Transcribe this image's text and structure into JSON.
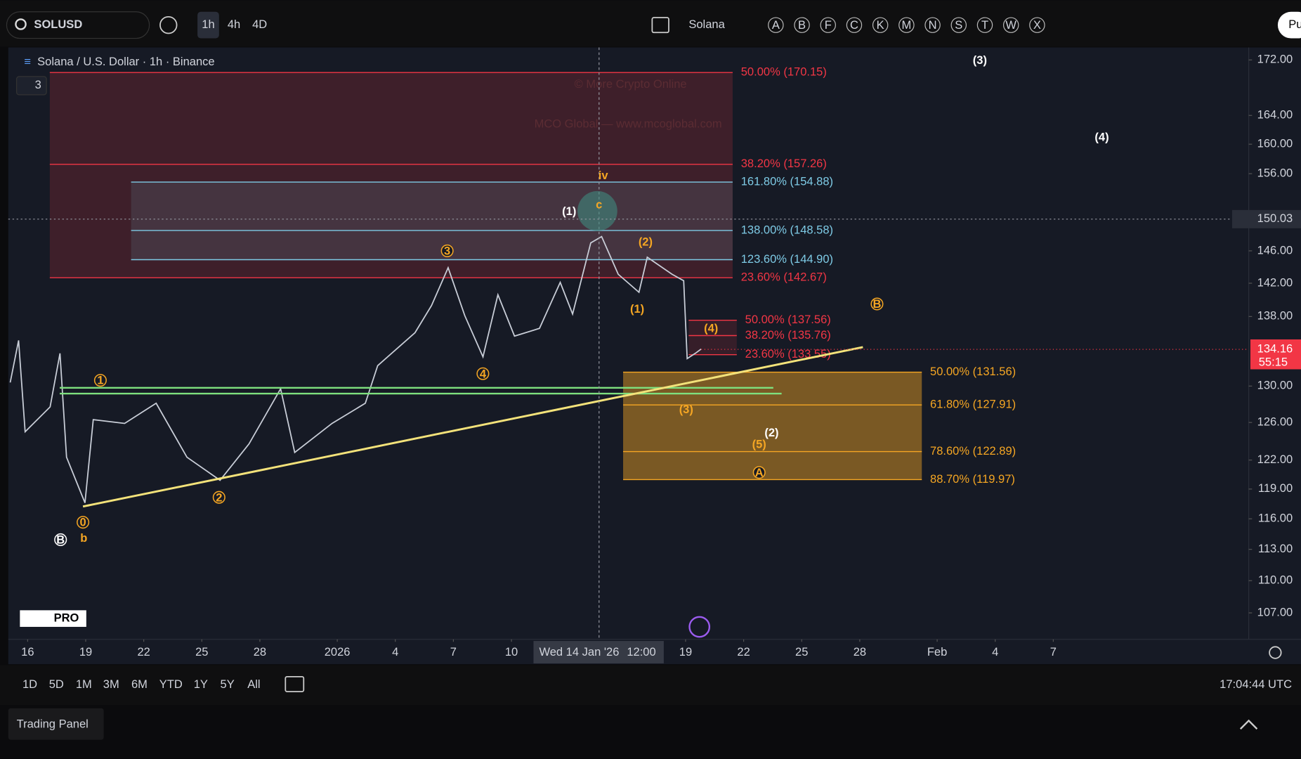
{
  "toolbar": {
    "symbol": "SOLUSD",
    "intervals": [
      "1h",
      "4h",
      "4D"
    ],
    "watchlist": "Solana",
    "letters": [
      "A",
      "B",
      "F",
      "C",
      "K",
      "M",
      "N",
      "S",
      "T",
      "W",
      "X"
    ],
    "button": "Pu"
  },
  "legend": {
    "title": "Solana / U.S. Dollar · 1h · Binance",
    "count": "3"
  },
  "watermark": {
    "title": "© More Crypto Online",
    "subtitle": "MCO Global — www.mcoglobal.com"
  },
  "logo": "PRO",
  "chart_data": {
    "type": "line",
    "color": "#c9ced8",
    "log_scale": true,
    "x": [
      -0.9,
      -0.47,
      -0.13,
      1.16,
      1.67,
      2.01,
      2.96,
      3.39,
      5.01,
      6.64,
      8.23,
      9.94,
      11.44,
      13.07,
      13.8,
      15.73,
      17.45,
      18.09,
      20.02,
      20.87,
      21.73,
      22.59,
      23.53,
      24.3,
      25.16,
      26.45,
      27.52,
      28.16,
      29.1,
      29.66,
      30.52,
      31.59,
      32.02,
      33.3,
      33.9,
      34.08,
      34.5,
      34.8
    ],
    "values": [
      130.4,
      135.2,
      125.0,
      127.7,
      133.7,
      122.3,
      117.6,
      126.3,
      125.9,
      128.1,
      122.3,
      119.9,
      123.7,
      129.7,
      122.8,
      125.9,
      128.1,
      132.3,
      136.1,
      139.3,
      143.9,
      138.1,
      133.3,
      140.6,
      135.7,
      136.6,
      142.1,
      138.3,
      147.0,
      147.8,
      143.1,
      140.9,
      145.2,
      143.1,
      142.3,
      133.1,
      133.7,
      134.2
    ],
    "xlim": [
      -1,
      63.1
    ],
    "xticks": [
      {
        "value": 0,
        "label": "16"
      },
      {
        "value": 3,
        "label": "19"
      },
      {
        "value": 6,
        "label": "22"
      },
      {
        "value": 9,
        "label": "25"
      },
      {
        "value": 12,
        "label": "28"
      },
      {
        "value": 16,
        "label": "2026"
      },
      {
        "value": 19,
        "label": "4"
      },
      {
        "value": 22,
        "label": "7"
      },
      {
        "value": 25,
        "label": "10"
      },
      {
        "value": 34,
        "label": "19"
      },
      {
        "value": 37,
        "label": "22"
      },
      {
        "value": 40,
        "label": "25"
      },
      {
        "value": 43,
        "label": "28"
      },
      {
        "value": 47,
        "label": "Feb"
      },
      {
        "value": 50,
        "label": "4"
      },
      {
        "value": 53,
        "label": "7"
      }
    ],
    "ylim": [
      104.6,
      173.85
    ],
    "yticks": [
      {
        "value": 172,
        "label": "172.00"
      },
      {
        "value": 164,
        "label": "164.00"
      },
      {
        "value": 160,
        "label": "160.00"
      },
      {
        "value": 156,
        "label": "156.00"
      },
      {
        "value": 146,
        "label": "146.00"
      },
      {
        "value": 142,
        "label": "142.00"
      },
      {
        "value": 138,
        "label": "138.00"
      },
      {
        "value": 130,
        "label": "130.00"
      },
      {
        "value": 126,
        "label": "126.00"
      },
      {
        "value": 122,
        "label": "122.00"
      },
      {
        "value": 119,
        "label": "119.00"
      },
      {
        "value": 116,
        "label": "116.00"
      },
      {
        "value": 113,
        "label": "113.00"
      },
      {
        "value": 110,
        "label": "110.00"
      },
      {
        "value": 107,
        "label": "107.00"
      }
    ],
    "last_price": {
      "value": 134.16,
      "label": "134.16"
    },
    "countdown": "55:15",
    "crosshair_price": {
      "value": 150.03,
      "label": "150.03"
    },
    "crosshair_time": [
      "Wed 14 Jan '26",
      "12:00"
    ],
    "fib_groups": [
      {
        "color": "#f23645",
        "levels": [
          {
            "value": 170.15,
            "label": "50.00% (170.15)"
          },
          {
            "value": 157.26,
            "label": "38.20% (157.26)"
          },
          {
            "value": 142.67,
            "label": "23.60% (142.67)"
          }
        ]
      },
      {
        "color": "#7ecbe6",
        "levels": [
          {
            "value": 154.88,
            "label": "161.80% (154.88)"
          },
          {
            "value": 148.58,
            "label": "138.00% (148.58)"
          },
          {
            "value": 144.9,
            "label": "123.60% (144.90)"
          }
        ]
      },
      {
        "color": "#f23645",
        "levels": [
          {
            "value": 137.56,
            "label": "50.00% (137.56)"
          },
          {
            "value": 135.76,
            "label": "38.20% (135.76)"
          },
          {
            "value": 133.55,
            "label": "23.60% (133.55)"
          }
        ]
      },
      {
        "color": "#f5a623",
        "levels": [
          {
            "value": 131.56,
            "label": "50.00% (131.56)"
          },
          {
            "value": 127.91,
            "label": "61.80% (127.91)"
          },
          {
            "value": 122.89,
            "label": "78.60% (122.89)"
          },
          {
            "value": 119.97,
            "label": "88.70% (119.97)"
          }
        ]
      }
    ],
    "wave_labels": [
      "1",
      "2",
      "3",
      "4",
      "0",
      "b",
      "B",
      "iv",
      "c",
      "(1)",
      "(2)",
      "(1)",
      "(4)",
      "(3)",
      "(2)",
      "(5)",
      "A",
      "B",
      "(3)",
      "(4)"
    ]
  },
  "ranges": [
    "1D",
    "5D",
    "1M",
    "3M",
    "6M",
    "YTD",
    "1Y",
    "5Y",
    "All"
  ],
  "clock": "17:04:44 UTC",
  "panel": "Trading Panel"
}
